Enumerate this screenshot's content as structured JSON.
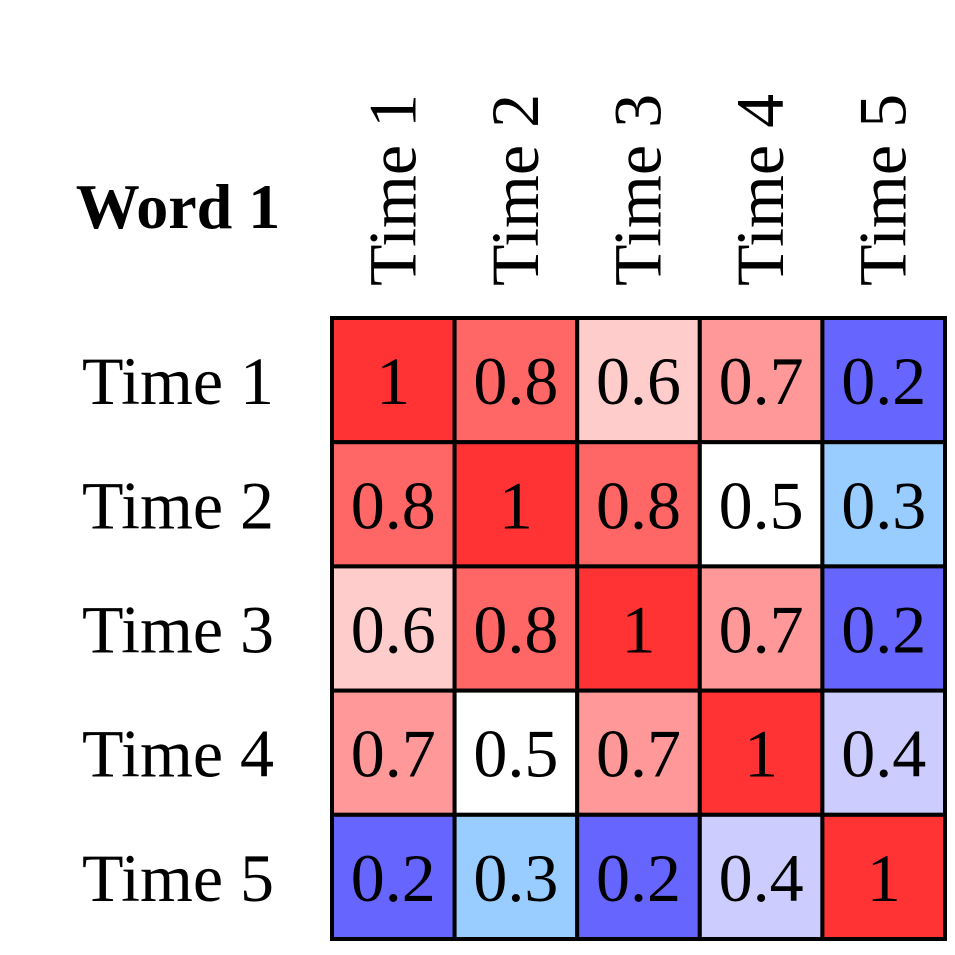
{
  "chart_data": {
    "type": "heatmap",
    "title": "Word 1",
    "x_labels": [
      "Time 1",
      "Time 2",
      "Time 3",
      "Time 4",
      "Time 5"
    ],
    "y_labels": [
      "Time 1",
      "Time 2",
      "Time 3",
      "Time 4",
      "Time 5"
    ],
    "values": [
      [
        1,
        0.8,
        0.6,
        0.7,
        0.2
      ],
      [
        0.8,
        1,
        0.8,
        0.5,
        0.3
      ],
      [
        0.6,
        0.8,
        1,
        0.7,
        0.2
      ],
      [
        0.7,
        0.5,
        0.7,
        1,
        0.4
      ],
      [
        0.2,
        0.3,
        0.2,
        0.4,
        1
      ]
    ],
    "value_labels": [
      [
        "1",
        "0.8",
        "0.6",
        "0.7",
        "0.2"
      ],
      [
        "0.8",
        "1",
        "0.8",
        "0.5",
        "0.3"
      ],
      [
        "0.6",
        "0.8",
        "1",
        "0.7",
        "0.2"
      ],
      [
        "0.7",
        "0.5",
        "0.7",
        "1",
        "0.4"
      ],
      [
        "0.2",
        "0.3",
        "0.2",
        "0.4",
        "1"
      ]
    ],
    "color_map": {
      "0.2": "#6666ff",
      "0.3": "#99ccff",
      "0.4": "#ccccff",
      "0.5": "#ffffff",
      "0.6": "#ffcccc",
      "0.7": "#ff9999",
      "0.8": "#ff6666",
      "1": "#ff3333"
    },
    "colorbar": false,
    "grid": true,
    "x_axis_position": "top",
    "x_label_rotation": "vertical"
  }
}
